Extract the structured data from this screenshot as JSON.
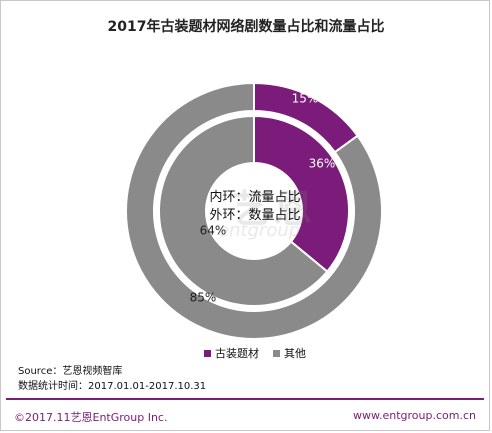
{
  "chart_data": {
    "type": "donut",
    "title": "2017年古装题材网络剧数量占比和流量占比",
    "categories": [
      "古装题材",
      "其他"
    ],
    "colors": [
      "#7b1c7a",
      "#8a8a8a"
    ],
    "series": [
      {
        "name": "内环：流量占比",
        "ring": "inner",
        "values": [
          36,
          64
        ],
        "labels": [
          "36%",
          "64%"
        ]
      },
      {
        "name": "外环：数量占比",
        "ring": "outer",
        "values": [
          15,
          85
        ],
        "labels": [
          "15%",
          "85%"
        ]
      }
    ],
    "legend": [
      "古装题材",
      "其他"
    ]
  },
  "center_text": [
    "内环：流量占比",
    "外环：数量占比"
  ],
  "watermark": {
    "brand": "艺恩",
    "sub": "entgroup"
  },
  "source": [
    "Source：艺恩视频智库",
    "数据统计时间：2017.01.01-2017.10.31"
  ],
  "footer": {
    "left": "©2017.11艺恩EntGroup Inc.",
    "right": "www.entgroup.com.cn"
  }
}
